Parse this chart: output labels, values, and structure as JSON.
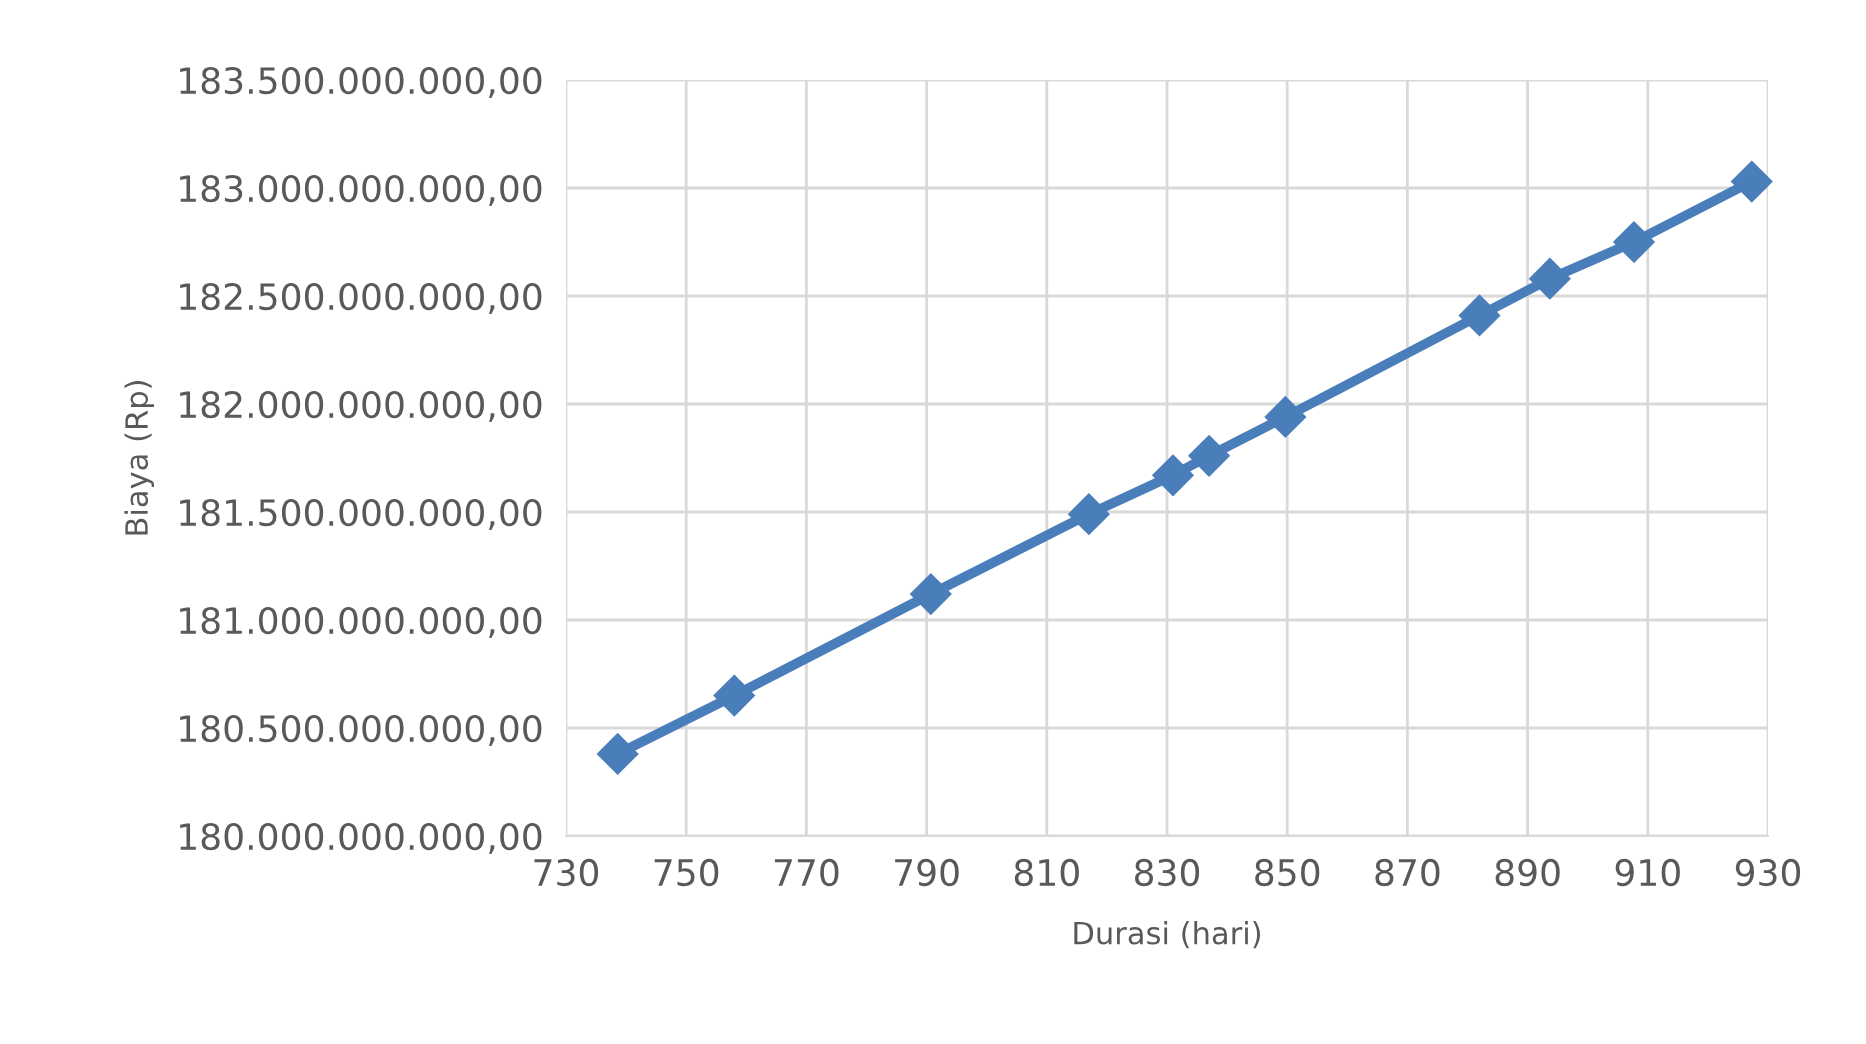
{
  "chart_data": {
    "type": "line",
    "xlabel": "Durasi (hari)",
    "ylabel": "Biaya (Rp)",
    "x": [
      738.6,
      758,
      790.7,
      817,
      831,
      837,
      849.7,
      882,
      893.7,
      907.7,
      927.3
    ],
    "series": [
      {
        "color": "#4a7ebb",
        "values": [
          180380000000,
          180650000000,
          181120000000,
          181490000000,
          181670000000,
          181760000000,
          181940000000,
          182410000000,
          182580000000,
          182750000000,
          183030000000
        ]
      }
    ],
    "xlim": [
      730,
      930
    ],
    "xticks": [
      730,
      750,
      770,
      790,
      810,
      830,
      850,
      870,
      890,
      910,
      930
    ],
    "ylim": [
      180000000000,
      183500000000
    ],
    "yticks": [
      {
        "value": 180000000000,
        "label": "180.000.000.000,00"
      },
      {
        "value": 180500000000,
        "label": "180.500.000.000,00"
      },
      {
        "value": 181000000000,
        "label": "181.000.000.000,00"
      },
      {
        "value": 181500000000,
        "label": "181.500.000.000,00"
      },
      {
        "value": 182000000000,
        "label": "182.000.000.000,00"
      },
      {
        "value": 182500000000,
        "label": "182.500.000.000,00"
      },
      {
        "value": 183000000000,
        "label": "183.000.000.000,00"
      },
      {
        "value": 183500000000,
        "label": "183.500.000.000,00"
      }
    ],
    "grid": true,
    "marker": "diamond",
    "line_style": "solid"
  }
}
